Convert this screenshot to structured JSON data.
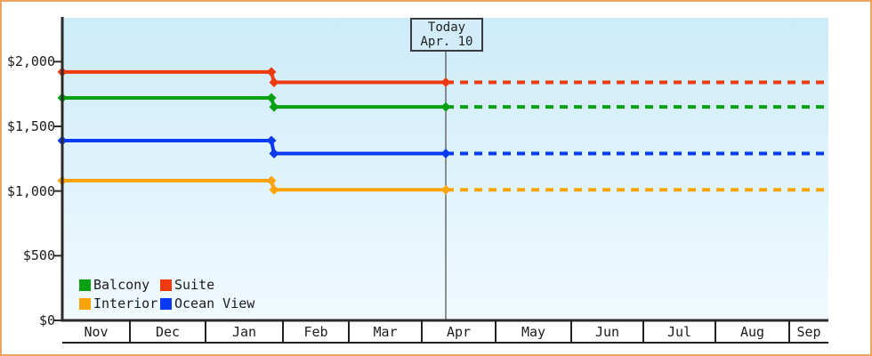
{
  "window": {
    "background_color": "#FFFFFF",
    "border_color": "#ECA55C"
  },
  "today_box": {
    "line1": "Today",
    "line2": "Apr. 10"
  },
  "legend": {
    "position": "bottom-left",
    "items": [
      {
        "label": "Balcony",
        "color": "#0AA014"
      },
      {
        "label": "Suite",
        "color": "#EE3A0E"
      },
      {
        "label": "Interior",
        "color": "#FFA408"
      },
      {
        "label": "Ocean View",
        "color": "#0A3AF0"
      }
    ]
  },
  "chart_data": {
    "type": "line",
    "title": "",
    "x_axis": {
      "categories": [
        "Nov",
        "Dec",
        "Jan",
        "Feb",
        "Mar",
        "Apr",
        "May",
        "Jun",
        "Jul",
        "Aug",
        "Sep"
      ]
    },
    "y_axis": {
      "ticks": [
        {
          "value": 0,
          "label": "$0"
        },
        {
          "value": 500,
          "label": "$500"
        },
        {
          "value": 1000,
          "label": "$1,000"
        },
        {
          "value": 1500,
          "label": "$1,500"
        },
        {
          "value": 2000,
          "label": "$2,000"
        }
      ],
      "ylim": [
        0,
        2340
      ]
    },
    "grid": false,
    "legend_position": "bottom-left",
    "plot_background": {
      "top_color": "#CDEBF9",
      "bottom_color": "#F0FAFE"
    },
    "annotation": {
      "label": "Today Apr. 10",
      "style": "vertical-line",
      "x_category": "Apr",
      "x_day": 10
    },
    "series": [
      {
        "name": "Balcony",
        "color": "#0AA014",
        "initial_price": 1720,
        "current_price": 1650,
        "points": [
          {
            "x": "early Nov",
            "value": 1720
          },
          {
            "x": "late Jan",
            "value": 1720
          },
          {
            "x": "late Jan",
            "value": 1650
          },
          {
            "x": "Apr 10 (today)",
            "value": 1650
          }
        ],
        "forecast": {
          "style": "dashed",
          "value": 1650,
          "from": "Apr 10",
          "to": "early Sep"
        }
      },
      {
        "name": "Suite",
        "color": "#EE3A0E",
        "initial_price": 1920,
        "current_price": 1840,
        "points": [
          {
            "x": "early Nov",
            "value": 1920
          },
          {
            "x": "late Jan",
            "value": 1920
          },
          {
            "x": "late Jan",
            "value": 1840
          },
          {
            "x": "Apr 10 (today)",
            "value": 1840
          }
        ],
        "forecast": {
          "style": "dashed",
          "value": 1840,
          "from": "Apr 10",
          "to": "early Sep"
        }
      },
      {
        "name": "Interior",
        "color": "#FFA408",
        "initial_price": 1080,
        "current_price": 1010,
        "points": [
          {
            "x": "early Nov",
            "value": 1080
          },
          {
            "x": "late Jan",
            "value": 1080
          },
          {
            "x": "late Jan",
            "value": 1010
          },
          {
            "x": "Apr 10 (today)",
            "value": 1010
          }
        ],
        "forecast": {
          "style": "dashed",
          "value": 1010,
          "from": "Apr 10",
          "to": "early Sep"
        }
      },
      {
        "name": "Ocean View",
        "color": "#0A3AF0",
        "initial_price": 1390,
        "current_price": 1290,
        "points": [
          {
            "x": "early Nov",
            "value": 1390
          },
          {
            "x": "late Jan",
            "value": 1390
          },
          {
            "x": "late Jan",
            "value": 1290
          },
          {
            "x": "Apr 10 (today)",
            "value": 1290
          }
        ],
        "forecast": {
          "style": "dashed",
          "value": 1290,
          "from": "Apr 10",
          "to": "early Sep"
        }
      }
    ]
  }
}
